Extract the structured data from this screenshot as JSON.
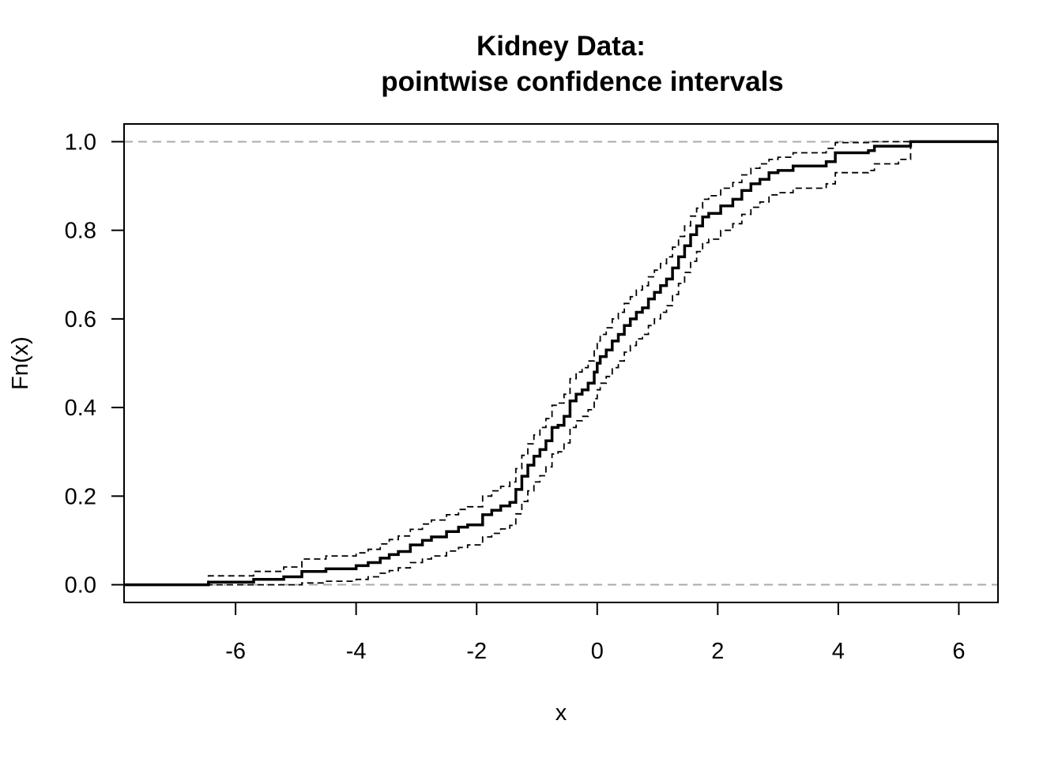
{
  "chart_data": {
    "type": "line",
    "title": "Kidney Data:",
    "subtitle": "pointwise confidence intervals",
    "xlabel": "x",
    "ylabel": "Fn(x)",
    "xlim": [
      -7.85,
      6.65
    ],
    "ylim": [
      -0.04,
      1.04
    ],
    "x_ticks": [
      -6,
      -4,
      -2,
      0,
      2,
      4,
      6
    ],
    "x_tick_labels": [
      "-6",
      "-4",
      "-2",
      "0",
      "2",
      "4",
      "6"
    ],
    "y_ticks": [
      0.0,
      0.2,
      0.4,
      0.6,
      0.8,
      1.0
    ],
    "y_tick_labels": [
      "0.0",
      "0.2",
      "0.4",
      "0.6",
      "0.8",
      "1.0"
    ],
    "reference_lines": [
      0.0,
      1.0
    ],
    "colors": {
      "ecdf": "#000000",
      "bounds": "#000000",
      "reference": "#aaaaaa"
    },
    "series": [
      {
        "style": "solid-thick",
        "x": [
          -7.85,
          -6.45,
          -5.7,
          -5.2,
          -4.9,
          -4.5,
          -4.0,
          -3.8,
          -3.6,
          -3.45,
          -3.3,
          -3.1,
          -2.9,
          -2.75,
          -2.5,
          -2.3,
          -2.15,
          -1.9,
          -1.75,
          -1.6,
          -1.45,
          -1.35,
          -1.25,
          -1.15,
          -1.05,
          -0.95,
          -0.85,
          -0.75,
          -0.65,
          -0.55,
          -0.45,
          -0.35,
          -0.25,
          -0.15,
          -0.05,
          0.0,
          0.05,
          0.15,
          0.25,
          0.35,
          0.45,
          0.55,
          0.65,
          0.75,
          0.85,
          0.95,
          1.05,
          1.15,
          1.25,
          1.35,
          1.45,
          1.55,
          1.65,
          1.75,
          1.85,
          2.05,
          2.25,
          2.4,
          2.55,
          2.7,
          2.85,
          3.0,
          3.25,
          3.5,
          3.8,
          3.95,
          4.5,
          4.6,
          5.0,
          5.2,
          6.65
        ],
        "y": [
          0.0,
          0.006,
          0.012,
          0.018,
          0.03,
          0.036,
          0.043,
          0.05,
          0.06,
          0.068,
          0.075,
          0.09,
          0.1,
          0.108,
          0.12,
          0.13,
          0.135,
          0.158,
          0.168,
          0.178,
          0.186,
          0.215,
          0.245,
          0.27,
          0.29,
          0.305,
          0.325,
          0.355,
          0.36,
          0.38,
          0.415,
          0.43,
          0.44,
          0.455,
          0.48,
          0.5,
          0.515,
          0.53,
          0.55,
          0.565,
          0.585,
          0.6,
          0.615,
          0.625,
          0.645,
          0.66,
          0.675,
          0.69,
          0.715,
          0.74,
          0.765,
          0.79,
          0.81,
          0.83,
          0.838,
          0.855,
          0.87,
          0.89,
          0.905,
          0.915,
          0.93,
          0.935,
          0.945,
          0.945,
          0.955,
          0.975,
          0.98,
          0.99,
          0.99,
          1.0,
          1.0
        ]
      },
      {
        "style": "dashed-upper",
        "x": [
          -7.85,
          -6.45,
          -5.7,
          -5.2,
          -4.9,
          -4.5,
          -4.0,
          -3.8,
          -3.6,
          -3.45,
          -3.3,
          -3.1,
          -2.9,
          -2.75,
          -2.5,
          -2.3,
          -2.15,
          -1.9,
          -1.75,
          -1.6,
          -1.45,
          -1.35,
          -1.25,
          -1.15,
          -1.05,
          -0.95,
          -0.85,
          -0.75,
          -0.65,
          -0.55,
          -0.45,
          -0.35,
          -0.25,
          -0.15,
          -0.05,
          0.0,
          0.05,
          0.15,
          0.25,
          0.35,
          0.45,
          0.55,
          0.65,
          0.75,
          0.85,
          0.95,
          1.05,
          1.15,
          1.25,
          1.35,
          1.45,
          1.55,
          1.65,
          1.75,
          1.85,
          2.05,
          2.25,
          2.4,
          2.55,
          2.7,
          2.85,
          3.0,
          3.25,
          3.5,
          3.8,
          3.95,
          4.5,
          4.6,
          5.0,
          5.2,
          6.65
        ],
        "y": [
          0.0,
          0.02,
          0.03,
          0.04,
          0.058,
          0.065,
          0.072,
          0.08,
          0.092,
          0.102,
          0.11,
          0.125,
          0.137,
          0.146,
          0.158,
          0.17,
          0.176,
          0.2,
          0.212,
          0.222,
          0.232,
          0.262,
          0.292,
          0.318,
          0.338,
          0.355,
          0.375,
          0.405,
          0.41,
          0.43,
          0.465,
          0.48,
          0.49,
          0.505,
          0.53,
          0.55,
          0.565,
          0.58,
          0.6,
          0.615,
          0.635,
          0.65,
          0.665,
          0.675,
          0.695,
          0.71,
          0.725,
          0.74,
          0.762,
          0.786,
          0.81,
          0.832,
          0.85,
          0.87,
          0.878,
          0.895,
          0.908,
          0.925,
          0.94,
          0.95,
          0.96,
          0.965,
          0.975,
          0.975,
          0.985,
          0.998,
          1.0,
          1.0,
          1.0,
          1.0,
          1.0
        ]
      },
      {
        "style": "dashed-lower",
        "x": [
          -7.85,
          -6.45,
          -5.7,
          -5.2,
          -4.9,
          -4.5,
          -4.0,
          -3.8,
          -3.6,
          -3.45,
          -3.3,
          -3.1,
          -2.9,
          -2.75,
          -2.5,
          -2.3,
          -2.15,
          -1.9,
          -1.75,
          -1.6,
          -1.45,
          -1.35,
          -1.25,
          -1.15,
          -1.05,
          -0.95,
          -0.85,
          -0.75,
          -0.65,
          -0.55,
          -0.45,
          -0.35,
          -0.25,
          -0.15,
          -0.05,
          0.0,
          0.05,
          0.15,
          0.25,
          0.35,
          0.45,
          0.55,
          0.65,
          0.75,
          0.85,
          0.95,
          1.05,
          1.15,
          1.25,
          1.35,
          1.45,
          1.55,
          1.65,
          1.75,
          1.85,
          2.05,
          2.25,
          2.4,
          2.55,
          2.7,
          2.85,
          3.0,
          3.25,
          3.5,
          3.8,
          3.95,
          4.5,
          4.6,
          5.0,
          5.2,
          6.65
        ],
        "y": [
          0.0,
          0.0,
          0.0,
          0.0,
          0.004,
          0.008,
          0.012,
          0.018,
          0.026,
          0.032,
          0.038,
          0.05,
          0.058,
          0.065,
          0.076,
          0.084,
          0.09,
          0.108,
          0.116,
          0.126,
          0.134,
          0.16,
          0.188,
          0.212,
          0.232,
          0.246,
          0.266,
          0.295,
          0.3,
          0.32,
          0.355,
          0.37,
          0.38,
          0.395,
          0.42,
          0.44,
          0.455,
          0.47,
          0.49,
          0.505,
          0.525,
          0.54,
          0.555,
          0.565,
          0.585,
          0.6,
          0.615,
          0.63,
          0.655,
          0.68,
          0.705,
          0.73,
          0.752,
          0.772,
          0.78,
          0.8,
          0.815,
          0.836,
          0.852,
          0.864,
          0.88,
          0.885,
          0.895,
          0.895,
          0.905,
          0.93,
          0.935,
          0.95,
          0.96,
          1.0,
          1.0
        ]
      }
    ]
  }
}
